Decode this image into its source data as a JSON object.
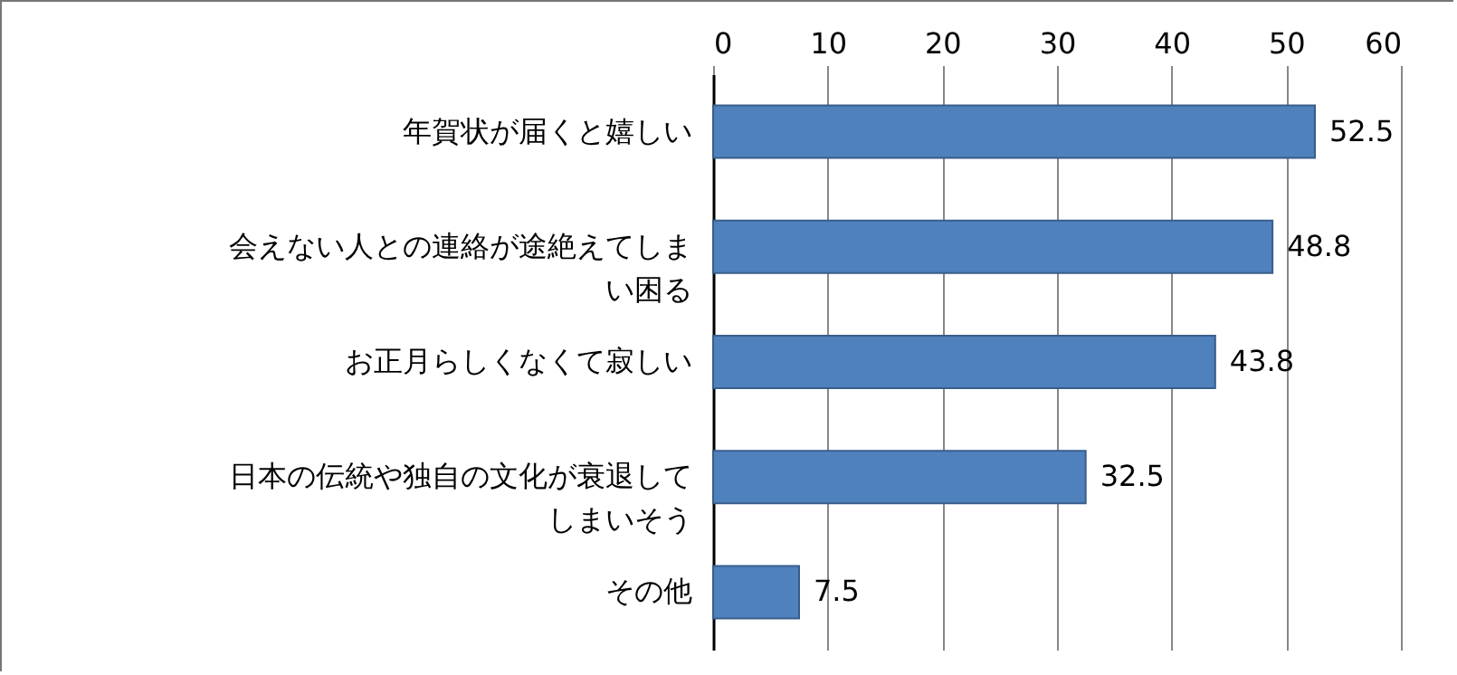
{
  "chart_data": {
    "type": "bar",
    "orientation": "horizontal",
    "categories": [
      "年賀状が届くと嬉しい",
      "会えない人との連絡が途絶えてしまい困る",
      "お正月らしくなくて寂しい",
      "日本の伝統や独自の文化が衰退してしまいそう",
      "その他"
    ],
    "values": [
      52.5,
      48.8,
      43.8,
      32.5,
      7.5
    ],
    "color": "#4f81bd",
    "xlim": [
      0,
      60
    ],
    "xticks": [
      0,
      10,
      20,
      30,
      40,
      50,
      60
    ],
    "grid": "x",
    "data_labels": true
  }
}
